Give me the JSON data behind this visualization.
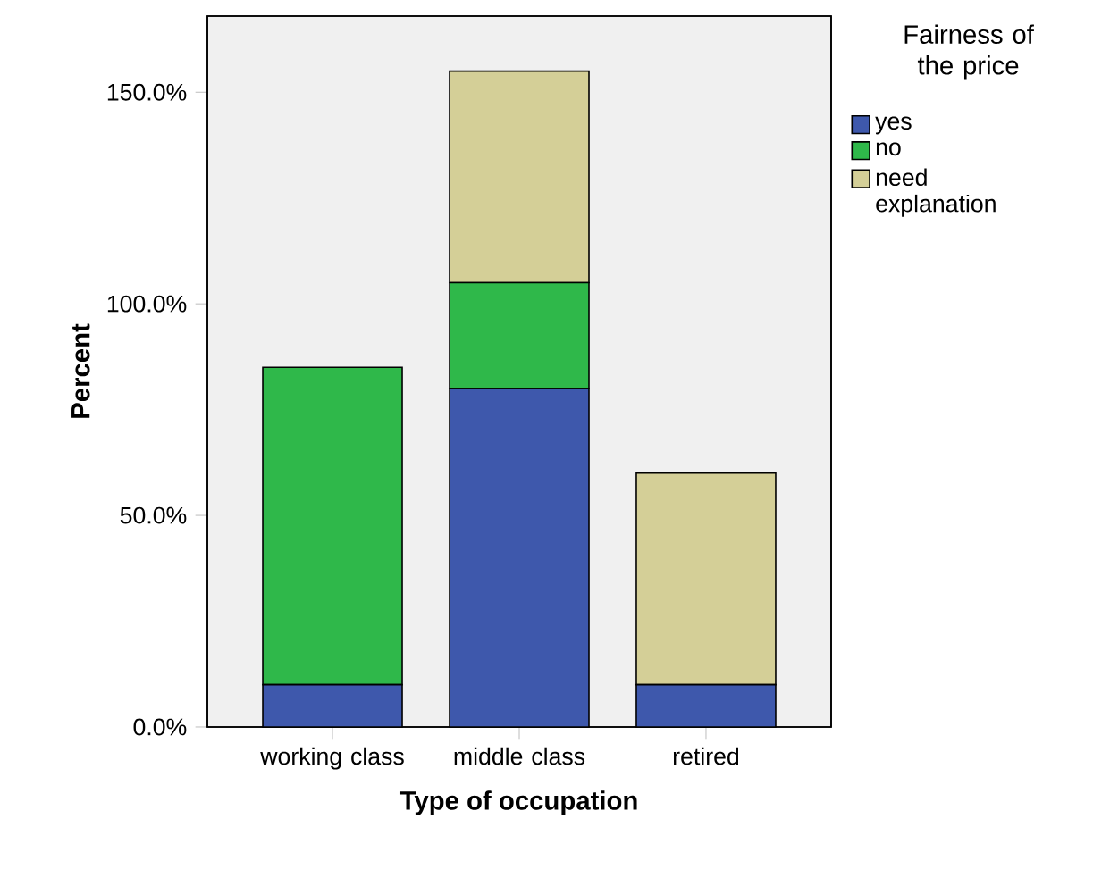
{
  "chart_data": {
    "type": "bar",
    "stacked": true,
    "xlabel": "Type of occupation",
    "ylabel": "Percent",
    "legend_title": "Fairness of the price",
    "legend": "right",
    "categories": [
      "working class",
      "middle class",
      "retired"
    ],
    "series": [
      {
        "name": "yes",
        "color": "#3e58ac",
        "values": [
          10,
          80,
          10
        ]
      },
      {
        "name": "no",
        "color": "#2fb84a",
        "values": [
          75,
          25,
          null
        ]
      },
      {
        "name": "need explanation",
        "color": "#d4cf97",
        "values": [
          null,
          50,
          50
        ]
      }
    ],
    "ylim": [
      0,
      168
    ],
    "yticks": [
      {
        "value": 0,
        "label": "0.0%"
      },
      {
        "value": 50,
        "label": "50.0%"
      },
      {
        "value": 100,
        "label": "100.0%"
      },
      {
        "value": 150,
        "label": "150.0%"
      }
    ],
    "grid": false
  }
}
